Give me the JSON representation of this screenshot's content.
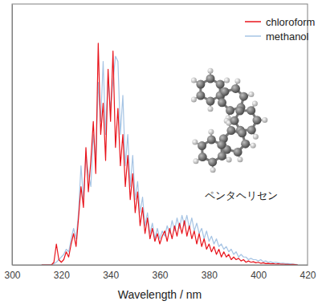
{
  "chart_data": {
    "type": "line",
    "xlabel": "Wavelength / nm",
    "annotations": [
      "ペンタヘリセン"
    ],
    "xlim": [
      300,
      420
    ],
    "xticks": [
      300,
      320,
      340,
      360,
      380,
      400,
      420
    ],
    "ylim": [
      0,
      1
    ],
    "tick_labels": "x",
    "legend": "top-right",
    "x": [
      312,
      313,
      314,
      315,
      316,
      317,
      318,
      319,
      320,
      321,
      322,
      323,
      324,
      325,
      326,
      327,
      328,
      329,
      330,
      331,
      332,
      333,
      334,
      335,
      336,
      337,
      338,
      339,
      340,
      341,
      342,
      343,
      344,
      345,
      346,
      347,
      348,
      349,
      350,
      351,
      352,
      353,
      354,
      355,
      356,
      357,
      358,
      359,
      360,
      361,
      362,
      363,
      364,
      365,
      366,
      367,
      368,
      369,
      370,
      371,
      372,
      373,
      374,
      375,
      376,
      377,
      378,
      379,
      380,
      381,
      382,
      383,
      384,
      385,
      386,
      387,
      388,
      389,
      390,
      391,
      392,
      393,
      394,
      395,
      396,
      397,
      398,
      399,
      400,
      401,
      402,
      403,
      404,
      405,
      406,
      407,
      408,
      409,
      410,
      411,
      412,
      413,
      414,
      415,
      416
    ],
    "series": [
      {
        "name": "chloroform",
        "color": "#e8141c",
        "values": [
          0,
          0,
          0,
          0,
          0,
          0.01,
          0.08,
          0.02,
          0.01,
          0.02,
          0.05,
          0.03,
          0.08,
          0.12,
          0.07,
          0.18,
          0.3,
          0.22,
          0.45,
          0.28,
          0.4,
          0.55,
          0.35,
          0.85,
          0.5,
          0.62,
          0.4,
          0.75,
          0.55,
          0.82,
          0.45,
          0.6,
          0.38,
          0.5,
          0.3,
          0.42,
          0.25,
          0.35,
          0.2,
          0.28,
          0.15,
          0.22,
          0.12,
          0.18,
          0.1,
          0.14,
          0.09,
          0.12,
          0.08,
          0.11,
          0.13,
          0.09,
          0.14,
          0.1,
          0.15,
          0.11,
          0.16,
          0.12,
          0.17,
          0.11,
          0.15,
          0.1,
          0.13,
          0.08,
          0.12,
          0.07,
          0.1,
          0.06,
          0.08,
          0.05,
          0.07,
          0.04,
          0.06,
          0.03,
          0.05,
          0.03,
          0.04,
          0.02,
          0.03,
          0.02,
          0.025,
          0.015,
          0.02,
          0.01,
          0.015,
          0.01,
          0.012,
          0.008,
          0.01,
          0.006,
          0.008,
          0.005,
          0.006,
          0.004,
          0.005,
          0.003,
          0.004,
          0.003,
          0.003,
          0.002,
          0.002,
          0.001,
          0.002,
          0.001,
          0
        ]
      },
      {
        "name": "methanol",
        "color": "#a6c4e4",
        "values": [
          0,
          0,
          0,
          0,
          0,
          0.005,
          0.01,
          0.02,
          0.03,
          0.04,
          0.06,
          0.05,
          0.1,
          0.14,
          0.1,
          0.2,
          0.38,
          0.25,
          0.42,
          0.35,
          0.3,
          0.5,
          0.4,
          0.7,
          0.55,
          0.78,
          0.5,
          0.72,
          0.6,
          0.7,
          0.8,
          0.78,
          0.5,
          0.65,
          0.38,
          0.5,
          0.3,
          0.42,
          0.25,
          0.32,
          0.2,
          0.26,
          0.15,
          0.2,
          0.12,
          0.16,
          0.1,
          0.14,
          0.1,
          0.13,
          0.11,
          0.15,
          0.12,
          0.17,
          0.13,
          0.18,
          0.14,
          0.19,
          0.15,
          0.19,
          0.14,
          0.18,
          0.13,
          0.16,
          0.12,
          0.14,
          0.1,
          0.13,
          0.09,
          0.11,
          0.08,
          0.1,
          0.07,
          0.08,
          0.06,
          0.07,
          0.05,
          0.06,
          0.04,
          0.05,
          0.03,
          0.04,
          0.03,
          0.03,
          0.02,
          0.025,
          0.02,
          0.02,
          0.015,
          0.02,
          0.012,
          0.015,
          0.01,
          0.012,
          0.008,
          0.01,
          0.008,
          0.006,
          0.007,
          0.005,
          0.005,
          0.004,
          0.003,
          0.002,
          0.001
        ]
      }
    ]
  }
}
